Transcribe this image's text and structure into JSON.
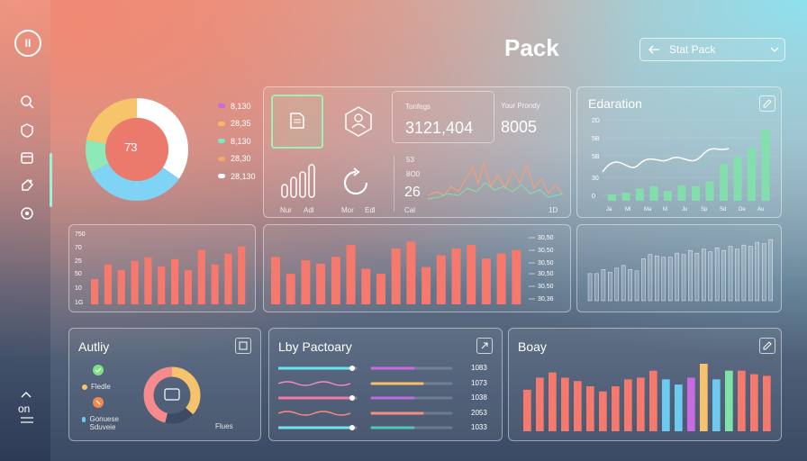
{
  "header": {
    "title": "Pack",
    "search_value": "Stat Pack"
  },
  "sidebar": {
    "logo_text": "II",
    "icons": [
      "search-icon",
      "shield-icon",
      "calendar-icon",
      "tag-icon",
      "settings-icon"
    ],
    "bottom_label": "on"
  },
  "donut": {
    "center_value": "7̄3",
    "legend": [
      {
        "label": "8,130",
        "color": "#c76adf"
      },
      {
        "label": "28,35",
        "color": "#f6b866"
      },
      {
        "label": "8,130",
        "color": "#7ee7c0"
      },
      {
        "label": "28,30",
        "color": "#f2a66c"
      },
      {
        "label": "28,130",
        "color": "#ffffff"
      }
    ]
  },
  "kpi": {
    "stat1_label": "Tonfegs",
    "stat1_value": "3121,404",
    "stat2_label": "Your Prondy",
    "stat2_value": "8005",
    "mini_labels": [
      "Nur",
      "Adl",
      "Mor",
      "Edl"
    ],
    "line_stat": "26",
    "line_axis_top": "53",
    "line_axis_mid": "8O0",
    "line_axis_bottom": "Cal",
    "line_axis_right": "1D"
  },
  "education": {
    "title": "Edaration",
    "y_labels": [
      "2D",
      "5B",
      "5B",
      "30",
      "0"
    ],
    "x_labels": [
      "Ja",
      "Ml",
      "Ma",
      "M",
      "Ju",
      "Sp",
      "Sd",
      "De",
      "Au"
    ],
    "bar_values": [
      8,
      10,
      15,
      18,
      12,
      19,
      18,
      24,
      45,
      54,
      66,
      88
    ]
  },
  "left_bars": {
    "y_labels": [
      "750",
      "70",
      "25",
      "50",
      "10",
      "1G"
    ],
    "values": [
      28,
      44,
      38,
      48,
      52,
      42,
      50,
      38,
      60,
      44,
      56,
      64
    ]
  },
  "center_bars": {
    "y_labels": [
      "30,50",
      "30,50",
      "30,50",
      "30,50",
      "30,50",
      "30,36"
    ],
    "values": [
      56,
      36,
      52,
      48,
      56,
      70,
      42,
      36,
      66,
      74,
      44,
      58,
      66,
      70,
      54,
      60,
      64
    ]
  },
  "right_bars": {
    "values": [
      40,
      40,
      46,
      42,
      48,
      52,
      46,
      44,
      62,
      68,
      66,
      64,
      64,
      70,
      68,
      74,
      70,
      76,
      72,
      78,
      74,
      80,
      76,
      82,
      80,
      86,
      84,
      90
    ]
  },
  "activity": {
    "title": "Autliy",
    "items": [
      {
        "label": "Fledle",
        "color": "#7fe27c"
      },
      {
        "label": "Gonuese Sduveie",
        "color": "#f28a4e"
      }
    ],
    "footer": "Flues",
    "donut_colors": [
      "#f6c26b",
      "#f58b8b",
      "#3c4a65"
    ]
  },
  "lily": {
    "title": "Lby Pactoary",
    "rows": [
      {
        "value": "1083",
        "c1": "#6fe4f0",
        "c2": "#c86be0"
      },
      {
        "value": "1073",
        "c1": "#f48abf",
        "c2": "#f6c06b"
      },
      {
        "value": "1038",
        "c1": "#f07aa8",
        "c2": "#b86ee0"
      },
      {
        "value": "2053",
        "c1": "#f58f84",
        "c2": "#f58f84"
      },
      {
        "value": "1033",
        "c1": "#6fe4f0",
        "c2": "#4cc7b5"
      }
    ]
  },
  "body_panel": {
    "title": "Boay",
    "values": [
      48,
      62,
      68,
      62,
      58,
      52,
      46,
      52,
      60,
      62,
      70,
      60,
      54,
      62,
      78,
      60,
      70,
      70,
      66,
      64
    ],
    "colors": [
      "#f5796d",
      "#f5796d",
      "#f5796d",
      "#f5796d",
      "#f5796d",
      "#f5796d",
      "#f5796d",
      "#f5796d",
      "#f5796d",
      "#f5796d",
      "#f5796d",
      "#6fcaf0",
      "#6fcaf0",
      "#c86be0",
      "#f6c26b",
      "#6fcaf0",
      "#7fe2a8",
      "#f5796d",
      "#f5796d",
      "#f5796d"
    ]
  },
  "colors": {
    "accent": "#9ff0d8",
    "coral": "#f5796d",
    "mint": "#7fe2a8"
  }
}
